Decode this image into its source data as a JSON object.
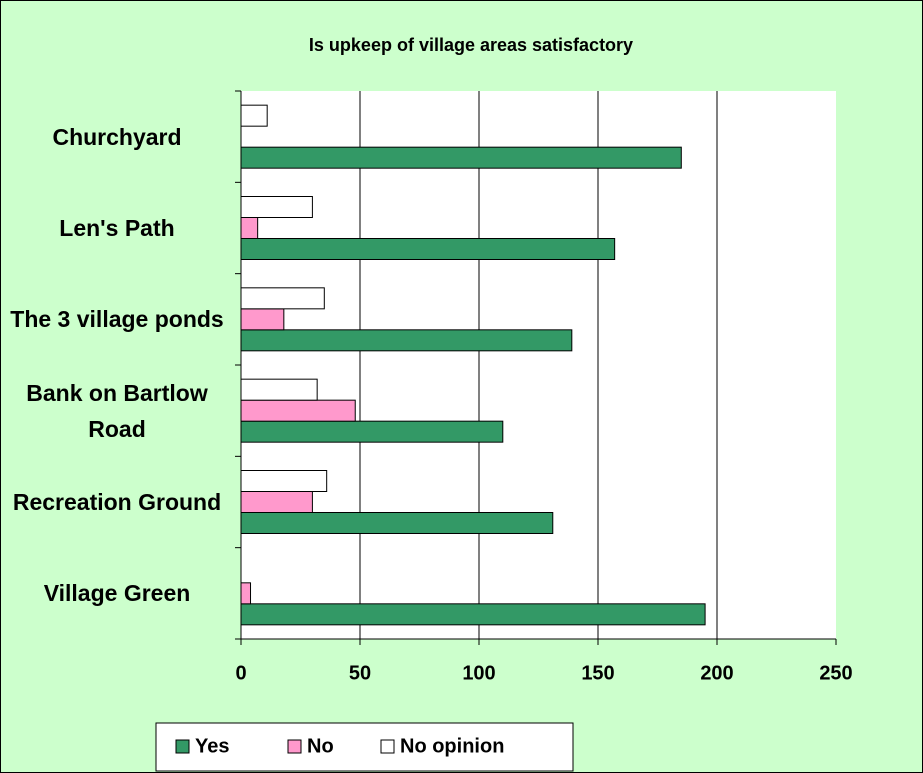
{
  "chart_data": {
    "type": "bar",
    "orientation": "horizontal",
    "title": "Is upkeep of village areas satisfactory",
    "categories": [
      "Churchyard",
      "Len's Path",
      "The 3 village ponds",
      "Bank on Bartlow Road",
      "Recreation Ground",
      "Village Green"
    ],
    "series": [
      {
        "name": "Yes",
        "color": "#339966",
        "values": [
          185,
          157,
          139,
          110,
          131,
          195
        ]
      },
      {
        "name": "No",
        "color": "#ff99cc",
        "values": [
          0,
          7,
          18,
          48,
          30,
          4
        ]
      },
      {
        "name": "No opinion",
        "color": "#ffffff",
        "values": [
          11,
          30,
          35,
          32,
          36,
          0
        ]
      }
    ],
    "xlim": [
      0,
      250
    ],
    "xticks": [
      0,
      50,
      100,
      150,
      200,
      250
    ],
    "grid": true,
    "legend": "bottom"
  }
}
